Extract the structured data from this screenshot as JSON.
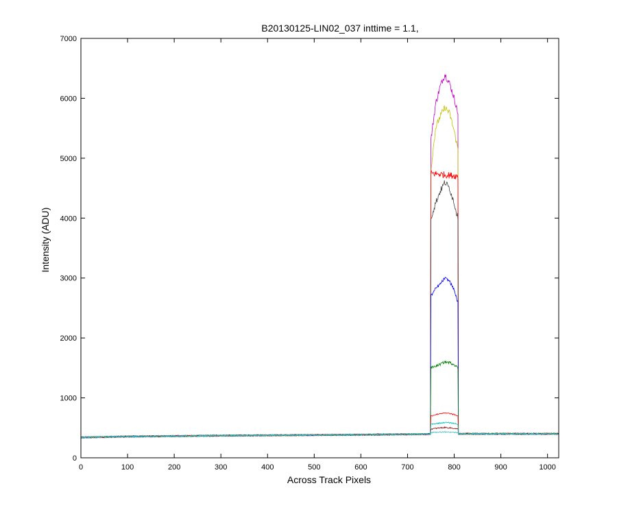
{
  "chart_data": {
    "type": "line",
    "title": "B20130125-LIN02_037 inttime = 1.1,",
    "xlabel": "Across Track Pixels",
    "ylabel": "Intensity (ADU)",
    "xlim": [
      0,
      1024
    ],
    "ylim": [
      0,
      7000
    ],
    "xticks": [
      0,
      100,
      200,
      300,
      400,
      500,
      600,
      700,
      800,
      900,
      1000
    ],
    "yticks": [
      0,
      1000,
      2000,
      3000,
      4000,
      5000,
      6000,
      7000
    ],
    "grid": false,
    "legend": "none",
    "baseline": {
      "x": [
        0,
        100,
        300,
        600,
        740,
        820,
        1024
      ],
      "y": [
        340,
        355,
        370,
        385,
        395,
        400,
        400
      ]
    },
    "illuminated_region": [
      750,
      808
    ],
    "series": [
      {
        "color": "#bf00bf",
        "x": [
          750,
          760,
          770,
          780,
          790,
          800,
          808
        ],
        "y": [
          5300,
          5900,
          6200,
          6400,
          6250,
          6000,
          5750
        ]
      },
      {
        "color": "#bfbf00",
        "x": [
          750,
          760,
          770,
          780,
          790,
          800,
          808
        ],
        "y": [
          4800,
          5500,
          5700,
          5850,
          5750,
          5450,
          5150
        ]
      },
      {
        "color": "#ff0000",
        "x": [
          750,
          808
        ],
        "y": [
          4750,
          4700
        ]
      },
      {
        "color": "#404040",
        "x": [
          750,
          760,
          770,
          780,
          790,
          800,
          808
        ],
        "y": [
          4000,
          4250,
          4450,
          4600,
          4500,
          4250,
          4000
        ]
      },
      {
        "color": "#0000ff",
        "x": [
          750,
          760,
          770,
          780,
          790,
          800,
          808
        ],
        "y": [
          2700,
          2820,
          2900,
          3000,
          2950,
          2800,
          2580
        ]
      },
      {
        "color": "#008000",
        "x": [
          750,
          760,
          770,
          780,
          790,
          800,
          808
        ],
        "y": [
          1500,
          1530,
          1560,
          1600,
          1590,
          1560,
          1500
        ]
      },
      {
        "color": "#ff0000",
        "x": [
          750,
          760,
          770,
          780,
          790,
          800,
          808
        ],
        "y": [
          700,
          720,
          740,
          745,
          740,
          720,
          700
        ]
      },
      {
        "color": "#8b0000",
        "x": [
          750,
          760,
          770,
          780,
          790,
          800,
          808
        ],
        "y": [
          480,
          490,
          500,
          505,
          500,
          490,
          480
        ]
      },
      {
        "color": "#00bfbf",
        "x": [
          750,
          760,
          770,
          780,
          790,
          800,
          808
        ],
        "y": [
          560,
          570,
          580,
          590,
          585,
          575,
          560
        ]
      },
      {
        "color": "#40c0c0",
        "x": [
          750,
          760,
          770,
          780,
          790,
          800,
          808
        ],
        "y": [
          420,
          425,
          430,
          435,
          430,
          425,
          420
        ]
      }
    ]
  }
}
